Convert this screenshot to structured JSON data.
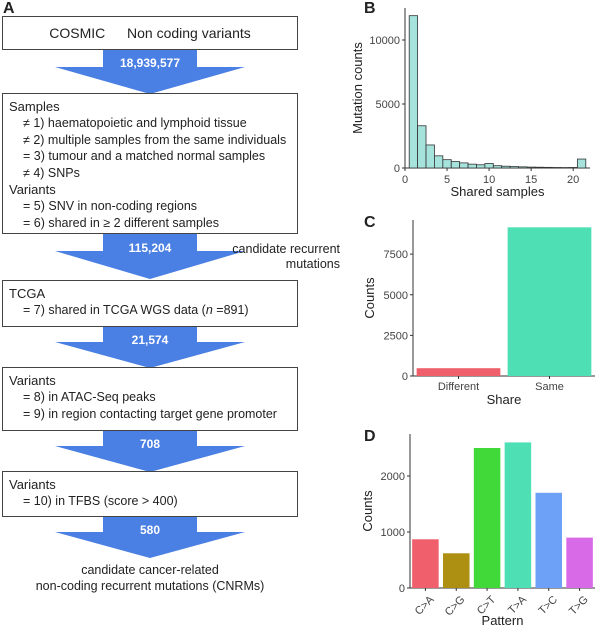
{
  "panels": {
    "a": "A",
    "b": "B",
    "c": "C",
    "d": "D"
  },
  "flow": {
    "top_box": {
      "title": "COSMIC",
      "subtitle": "Non coding variants"
    },
    "arrow1": "18,939,577",
    "box2": {
      "samples_head": "Samples",
      "lines": [
        "≠ 1) haematopoietic and lymphoid tissue",
        "≠ 2) multiple samples from the same individuals",
        "= 3) tumour and a matched normal samples",
        "≠ 4) SNPs"
      ],
      "variants_head": "Variants",
      "variant_lines": [
        "= 5) SNV in non-coding regions",
        "= 6) shared in ≥ 2 different samples"
      ]
    },
    "arrow2": "115,204",
    "arrow2_side": [
      "candidate recurrent",
      "mutations"
    ],
    "box3": {
      "head": "TCGA",
      "line_prefix": "= 7) shared in TCGA WGS data (",
      "line_n": "n",
      "line_suffix": " =891)"
    },
    "arrow3": "21,574",
    "box4": {
      "head": "Variants",
      "lines": [
        "= 8) in ATAC-Seq peaks",
        "= 9) in region contacting target gene promoter"
      ]
    },
    "arrow4": "708",
    "box5": {
      "head": "Variants",
      "lines": [
        "= 10) in TFBS (score > 400)"
      ]
    },
    "arrow5": "580",
    "final": [
      "candidate cancer-related",
      "non-coding recurrent mutations (CNRMs)"
    ]
  },
  "colors": {
    "arrow": "#4a7fe3",
    "histogram_fill": "#a6e3dd",
    "c_different": "#f0606c",
    "c_same": "#4ee0b4"
  },
  "chart_data": [
    {
      "panel": "B",
      "type": "bar",
      "xlabel": "Shared samples",
      "ylabel": "Mutation counts",
      "xlim": [
        0,
        22
      ],
      "ylim": [
        0,
        12500
      ],
      "xticks": [
        0,
        5,
        10,
        15,
        20
      ],
      "yticks": [
        0,
        5000,
        10000
      ],
      "ytick_labels": [
        "0",
        "5000",
        "10000"
      ],
      "bins": [
        {
          "x0": 0.5,
          "x1": 1.5,
          "value": 11900
        },
        {
          "x0": 1.5,
          "x1": 2.5,
          "value": 3300
        },
        {
          "x0": 2.5,
          "x1": 3.5,
          "value": 1800
        },
        {
          "x0": 3.5,
          "x1": 4.5,
          "value": 950
        },
        {
          "x0": 4.5,
          "x1": 5.5,
          "value": 650
        },
        {
          "x0": 5.5,
          "x1": 6.5,
          "value": 500
        },
        {
          "x0": 6.5,
          "x1": 7.5,
          "value": 400
        },
        {
          "x0": 7.5,
          "x1": 8.5,
          "value": 300
        },
        {
          "x0": 8.5,
          "x1": 9.5,
          "value": 250
        },
        {
          "x0": 9.5,
          "x1": 10.5,
          "value": 350
        },
        {
          "x0": 10.5,
          "x1": 11.5,
          "value": 180
        },
        {
          "x0": 11.5,
          "x1": 12.5,
          "value": 140
        },
        {
          "x0": 12.5,
          "x1": 13.5,
          "value": 110
        },
        {
          "x0": 13.5,
          "x1": 14.5,
          "value": 90
        },
        {
          "x0": 14.5,
          "x1": 15.5,
          "value": 70
        },
        {
          "x0": 15.5,
          "x1": 16.5,
          "value": 60
        },
        {
          "x0": 16.5,
          "x1": 17.5,
          "value": 50
        },
        {
          "x0": 17.5,
          "x1": 18.5,
          "value": 40
        },
        {
          "x0": 18.5,
          "x1": 19.5,
          "value": 35
        },
        {
          "x0": 19.5,
          "x1": 20.5,
          "value": 40
        },
        {
          "x0": 20.5,
          "x1": 21.5,
          "value": 700
        }
      ]
    },
    {
      "panel": "C",
      "type": "bar",
      "categories": [
        "Different",
        "Same"
      ],
      "values": [
        480,
        9150
      ],
      "xlabel": "Share",
      "ylabel": "Counts",
      "ylim": [
        0,
        9600
      ],
      "yticks": [
        0,
        2500,
        5000,
        7500
      ]
    },
    {
      "panel": "D",
      "type": "bar",
      "categories": [
        "C>A",
        "C>G",
        "C>T",
        "T>A",
        "T>C",
        "T>G"
      ],
      "values": [
        870,
        620,
        2500,
        2600,
        1700,
        900
      ],
      "colors": [
        "#f0606c",
        "#ad8f11",
        "#41d83a",
        "#4ee0b4",
        "#6da0f7",
        "#d86ae8"
      ],
      "xlabel": "Pattern",
      "ylabel": "Counts",
      "ylim": [
        0,
        2750
      ],
      "yticks": [
        0,
        1000,
        2000
      ]
    }
  ]
}
